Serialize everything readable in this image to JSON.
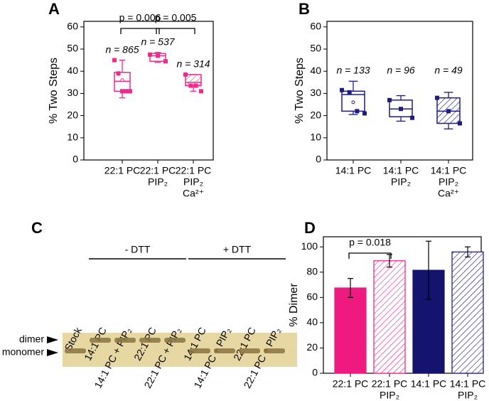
{
  "panel_labels": [
    "A",
    "B",
    "C",
    "D"
  ],
  "chart_data": [
    {
      "type": "box",
      "y_label": "% Two Steps",
      "categories": [
        [
          "22:1 PC"
        ],
        [
          "22:1 PC",
          "PIP₂"
        ],
        [
          "22:1 PC",
          "PIP₂",
          "Ca²⁺"
        ]
      ],
      "color": "#ee2a8c",
      "hatch": [
        false,
        false,
        true
      ],
      "ylim": [
        0,
        62.5
      ],
      "yticks": [
        0,
        10,
        20,
        30,
        40,
        50,
        60
      ],
      "n_labels": [
        "n = 865",
        "n = 537",
        "n = 314"
      ],
      "comparisons": [
        "p = 0.006",
        "p = 0.005"
      ],
      "boxes": [
        {
          "min": 28,
          "q1": 31,
          "median": 35.5,
          "q3": 39.5,
          "max": 45,
          "mean": 36,
          "points": [
            45,
            39,
            31,
            31,
            31
          ]
        },
        {
          "min": 44,
          "q1": 44.5,
          "median": 47,
          "q3": 48,
          "max": 48.5,
          "points": [
            47.5,
            47,
            44.5
          ]
        },
        {
          "min": 31,
          "q1": 33.5,
          "median": 35,
          "q3": 38.5,
          "max": 38.5,
          "points": [
            38.5,
            33.5,
            33.5,
            31
          ]
        }
      ]
    },
    {
      "type": "box",
      "y_label": "% Two Steps",
      "categories": [
        [
          "14:1 PC"
        ],
        [
          "14:1 PC",
          "PIP₂"
        ],
        [
          "14:1 PC",
          "PIP₂",
          "Ca²⁺"
        ]
      ],
      "color": "#1c1c82",
      "hatch": [
        false,
        false,
        true
      ],
      "ylim": [
        0,
        62.5
      ],
      "yticks": [
        0,
        10,
        20,
        30,
        40,
        50,
        60
      ],
      "n_labels": [
        "n = 133",
        "n = 96",
        "n = 49"
      ],
      "comparisons": [],
      "boxes": [
        {
          "min": 20.5,
          "q1": 22,
          "median": 29.5,
          "q3": 31,
          "max": 35.5,
          "mean": 26,
          "points": [
            31.5,
            30.5,
            22,
            21
          ]
        },
        {
          "min": 17.5,
          "q1": 19.5,
          "median": 23,
          "q3": 27,
          "max": 29,
          "points": [
            27,
            23,
            19
          ]
        },
        {
          "min": 14,
          "q1": 16.5,
          "median": 22,
          "q3": 28,
          "max": 30.5,
          "points": [
            28,
            22,
            16.5
          ]
        }
      ]
    },
    {
      "type": "bar",
      "y_label": "% Dimer",
      "categories": [
        [
          "22:1 PC"
        ],
        [
          "22:1 PC",
          "PIP₂"
        ],
        [
          "14:1 PC"
        ],
        [
          "14:1 PC",
          "PIP₂"
        ]
      ],
      "values": [
        67.5,
        89,
        81.5,
        96
      ],
      "errors": [
        7.5,
        5,
        23,
        4
      ],
      "colors": [
        "#ee1a80",
        "#ee1a80",
        "#14146e",
        "#14146e"
      ],
      "hatch": [
        false,
        true,
        false,
        true
      ],
      "ylim": [
        0,
        108
      ],
      "yticks": [
        0,
        20,
        40,
        60,
        80,
        100
      ],
      "comparisons": [
        "p = 0.018"
      ]
    }
  ],
  "gel": {
    "lanes": [
      "Stock",
      "14:1 PC",
      "14:1 PC + PIP₂",
      "22:1 PC",
      "22:1 PC + PIP₂",
      "14:1 PC",
      "14:1 PC + PIP₂",
      "22:1 PC",
      "22:1 PC + PIP₂"
    ],
    "groups": [
      "- DTT",
      "+ DTT"
    ],
    "bands": [
      "dimer",
      "monomer"
    ]
  }
}
